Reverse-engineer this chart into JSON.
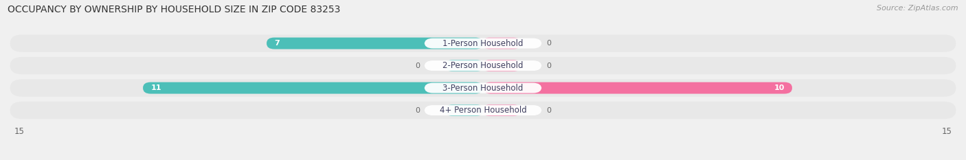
{
  "title": "OCCUPANCY BY OWNERSHIP BY HOUSEHOLD SIZE IN ZIP CODE 83253",
  "source": "Source: ZipAtlas.com",
  "categories": [
    "1-Person Household",
    "2-Person Household",
    "3-Person Household",
    "4+ Person Household"
  ],
  "owner_values": [
    7,
    0,
    11,
    0
  ],
  "renter_values": [
    0,
    0,
    10,
    0
  ],
  "owner_color": "#4CBFB8",
  "renter_color": "#F470A0",
  "owner_color_light": "#92D8D4",
  "renter_color_light": "#F4A8C4",
  "axis_max": 15,
  "background_color": "#f0f0f0",
  "bar_bg_color": "#e2e2e2",
  "label_bg_color": "#ffffff",
  "row_bg_color": "#e8e8e8",
  "title_fontsize": 10,
  "source_fontsize": 8,
  "tick_fontsize": 8.5,
  "bar_label_fontsize": 8,
  "category_fontsize": 8.5
}
